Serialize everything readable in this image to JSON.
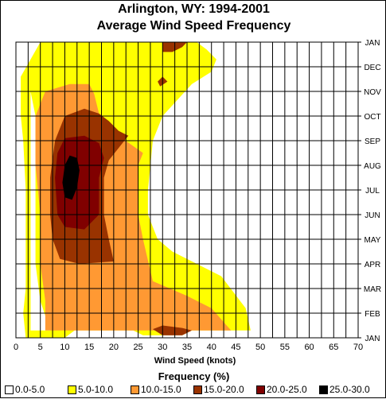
{
  "chart_data": {
    "type": "heatmap",
    "subtype": "filled-contour",
    "title": "Arlington, WY: 1994-2001",
    "subtitle": "Average Wind Speed Frequency",
    "xlabel": "Wind Speed (knots)",
    "xlim": [
      0,
      70
    ],
    "x_ticks": [
      "0",
      "5",
      "10",
      "15",
      "20",
      "25",
      "30",
      "35",
      "40",
      "45",
      "50",
      "55",
      "60",
      "65",
      "70"
    ],
    "y_ticks": [
      "JAN",
      "FEB",
      "MAR",
      "APR",
      "MAY",
      "JUN",
      "JUL",
      "AUG",
      "SEP",
      "OCT",
      "NOV",
      "DEC",
      "JAN"
    ],
    "y_axis_side": "right",
    "grid": true,
    "legend": {
      "title": "Frequency (%)",
      "position": "bottom",
      "entries": [
        "0.0-5.0",
        "5.0-10.0",
        "10.0-15.0",
        "15.0-20.0",
        "20.0-25.0",
        "25.0-30.0"
      ]
    },
    "colors": [
      "#ffffff",
      "#ffff00",
      "#ff9933",
      "#993300",
      "#800000",
      "#000000"
    ],
    "contours": [
      {
        "level": "5.0-10.0",
        "boundary": [
          [
            2,
            0
          ],
          [
            10,
            0
          ],
          [
            12,
            0.3
          ],
          [
            24,
            0.3
          ],
          [
            26,
            0.1
          ],
          [
            34,
            0.1
          ],
          [
            36,
            0.3
          ],
          [
            48,
            0.3
          ],
          [
            47,
            1.2
          ],
          [
            42,
            2.5
          ],
          [
            32,
            3.5
          ],
          [
            29,
            4
          ],
          [
            27,
            5
          ],
          [
            27,
            6
          ],
          [
            28,
            8
          ],
          [
            30,
            9
          ],
          [
            36,
            10.3
          ],
          [
            40,
            10.8
          ],
          [
            41,
            11.3
          ],
          [
            39,
            11.7
          ],
          [
            37,
            12
          ],
          [
            5,
            12
          ],
          [
            3,
            11.3
          ],
          [
            1,
            10.6
          ],
          [
            1,
            9
          ],
          [
            1.5,
            8
          ],
          [
            2,
            6
          ],
          [
            2,
            4
          ],
          [
            2,
            3
          ],
          [
            2,
            2
          ],
          [
            1.5,
            1
          ],
          [
            2,
            0
          ]
        ],
        "holes": [
          [
            [
              3,
              0.3
            ],
            [
              7,
              0.3
            ],
            [
              5,
              1.5
            ],
            [
              4,
              3
            ],
            [
              4,
              5
            ],
            [
              4,
              7
            ],
            [
              4,
              9
            ],
            [
              3,
              10
            ]
          ]
        ]
      },
      {
        "level": "10.0-15.0",
        "boundary": [
          [
            6,
            0.3
          ],
          [
            44,
            0.3
          ],
          [
            40,
            1.2
          ],
          [
            35,
            1.7
          ],
          [
            28,
            2.3
          ],
          [
            26,
            4
          ],
          [
            25,
            5
          ],
          [
            25,
            6
          ],
          [
            25,
            7
          ],
          [
            26,
            7.5
          ],
          [
            21,
            8.2
          ],
          [
            17,
            9.1
          ],
          [
            16,
            9.9
          ],
          [
            15,
            10.3
          ],
          [
            11,
            10.3
          ],
          [
            6,
            10
          ],
          [
            4,
            9
          ],
          [
            4,
            7
          ],
          [
            5,
            5
          ],
          [
            5,
            3
          ],
          [
            6,
            1.5
          ]
        ]
      },
      {
        "level": "15.0-20.0",
        "boundary": [
          [
            9,
            3.2
          ],
          [
            13,
            3
          ],
          [
            20,
            3.1
          ],
          [
            19,
            4
          ],
          [
            18,
            5
          ],
          [
            18,
            6.5
          ],
          [
            19,
            7.2
          ],
          [
            23,
            8.2
          ],
          [
            21,
            8.4
          ],
          [
            19,
            8.8
          ],
          [
            17,
            9.1
          ],
          [
            14,
            9.3
          ],
          [
            10,
            9
          ],
          [
            8,
            8
          ],
          [
            7,
            6.5
          ],
          [
            7,
            5
          ],
          [
            7.5,
            4
          ],
          [
            9,
            3.2
          ]
        ]
      },
      {
        "level": "20.0-25.0",
        "boundary": [
          [
            10,
            4.5
          ],
          [
            14,
            4.4
          ],
          [
            17,
            5
          ],
          [
            17,
            6.5
          ],
          [
            18,
            7.3
          ],
          [
            17,
            7.9
          ],
          [
            14,
            8.2
          ],
          [
            10,
            8.1
          ],
          [
            8.5,
            7.5
          ],
          [
            8,
            6.5
          ],
          [
            8.5,
            5
          ],
          [
            10,
            4.5
          ]
        ]
      },
      {
        "level": "25.0-30.0",
        "boundary": [
          [
            10,
            5.7
          ],
          [
            11.5,
            5.6
          ],
          [
            12.5,
            6.1
          ],
          [
            13,
            6.8
          ],
          [
            12.5,
            7.3
          ],
          [
            11,
            7.4
          ],
          [
            10,
            7
          ],
          [
            9.5,
            6.3
          ],
          [
            10,
            5.7
          ]
        ]
      },
      {
        "level": "15.0-20.0",
        "boundary": [
          [
            28,
            0.35
          ],
          [
            30,
            0.1
          ],
          [
            34,
            0.1
          ],
          [
            36,
            0.3
          ],
          [
            34,
            0.4
          ],
          [
            30,
            0.5
          ]
        ]
      },
      {
        "level": "15.0-20.0",
        "boundary": [
          [
            30,
            11.6
          ],
          [
            32,
            11.6
          ],
          [
            34,
            11.8
          ],
          [
            35,
            12
          ],
          [
            30,
            12
          ],
          [
            30,
            11.8
          ]
        ]
      },
      {
        "level": "15.0-20.0",
        "boundary": [
          [
            29.5,
            10.2
          ],
          [
            31,
            10.4
          ],
          [
            30,
            10.6
          ],
          [
            29,
            10.4
          ],
          [
            29.5,
            10.2
          ]
        ]
      }
    ]
  }
}
